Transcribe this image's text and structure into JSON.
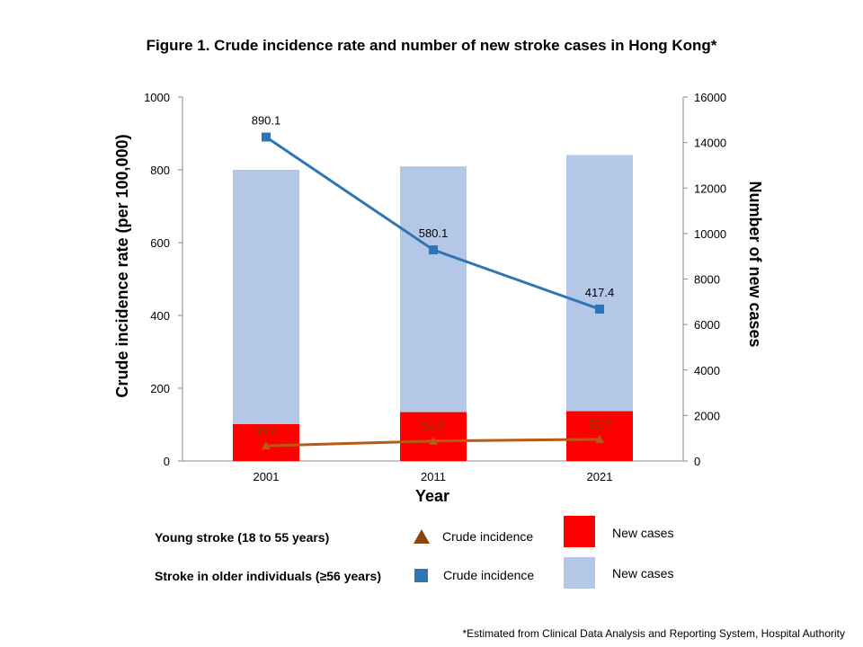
{
  "chart_data": {
    "type": "bar+line",
    "title": "Figure 1. Crude incidence rate and number of new stroke cases in Hong Kong*",
    "categories": [
      "2001",
      "2011",
      "2021"
    ],
    "xlabel": "Year",
    "ylabel_left": "Crude incidence rate (per 100,000)",
    "ylabel_right": "Number of new cases",
    "ylim_left": [
      0,
      1000
    ],
    "ylim_right": [
      0,
      16000
    ],
    "left_ticks": [
      "0",
      "200",
      "400",
      "600",
      "800",
      "1000"
    ],
    "right_ticks": [
      "0",
      "2000",
      "4000",
      "6000",
      "8000",
      "10000",
      "12000",
      "14000",
      "16000"
    ],
    "bar_series": [
      {
        "name": "Young stroke (18 to 55 years) - New cases",
        "color": "#ff0000",
        "values": [
          1620,
          2150,
          2190
        ]
      },
      {
        "name": "Stroke in older individuals (≥56 years) - New cases",
        "color": "#b4c7e7",
        "values": [
          11180,
          10800,
          11260
        ]
      }
    ],
    "line_series": [
      {
        "name": "Young stroke (18 to 55 years) - Crude incidence",
        "color": "#b85a12",
        "marker": "triangle",
        "values": [
          41.8,
          54.7,
          59.7
        ],
        "labels": [
          "41.8",
          "54.7",
          "59.7"
        ]
      },
      {
        "name": "Stroke in older individuals (≥56 years) - Crude incidence",
        "color": "#2e75b6",
        "marker": "square",
        "values": [
          890.1,
          580.1,
          417.4
        ],
        "labels": [
          "890.1",
          "580.1",
          "417.4"
        ]
      }
    ]
  },
  "legend": {
    "young_label": "Young stroke (18 to 55 years)",
    "older_label": "Stroke in older individuals (≥56 years)",
    "crude_label": "Crude incidence",
    "new_cases_label": "New cases",
    "young_line_color": "#8b4513",
    "older_line_color": "#2e75b6",
    "young_bar_color": "#ff0000",
    "older_bar_color": "#b4c7e7"
  },
  "footnote": "*Estimated from Clinical Data Analysis and Reporting System, Hospital Authority"
}
